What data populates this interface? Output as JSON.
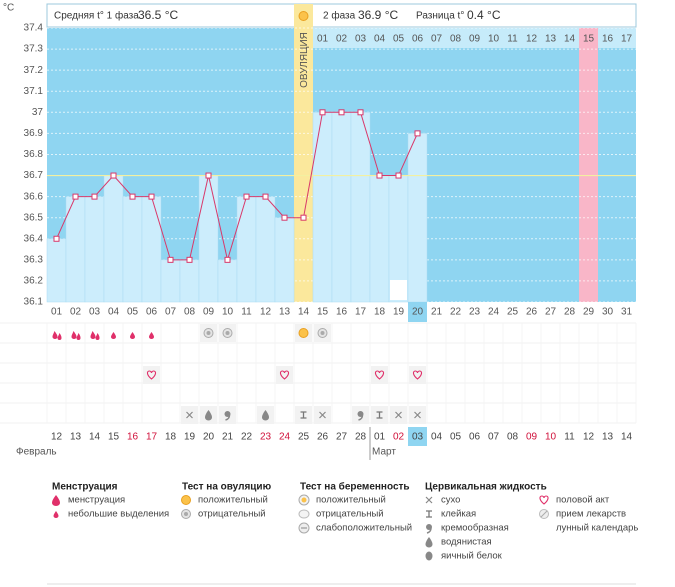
{
  "header": {
    "phase1_label": "Средняя t° 1 фаза",
    "phase1_value": "36.5 °C",
    "phase2_label": "2 фаза",
    "phase2_value": "36.9 °C",
    "diff_label": "Разница t°",
    "diff_value": "0.4 °C"
  },
  "chart_data": {
    "type": "line",
    "y_unit": "°C",
    "categories": [
      "01",
      "02",
      "03",
      "04",
      "05",
      "06",
      "07",
      "08",
      "09",
      "10",
      "11",
      "12",
      "13",
      "14",
      "15",
      "16",
      "17",
      "18",
      "19",
      "20",
      "21",
      "22",
      "23",
      "24",
      "25",
      "26",
      "27",
      "28",
      "29",
      "30",
      "31"
    ],
    "series": [
      {
        "color": "#d9386a",
        "values": [
          36.4,
          36.6,
          36.6,
          36.7,
          36.6,
          36.6,
          36.3,
          36.3,
          36.7,
          36.3,
          36.6,
          36.6,
          36.5,
          36.5,
          37.0,
          37.0,
          37.0,
          36.7,
          36.7,
          36.9,
          null,
          null,
          null,
          null,
          null,
          null,
          null,
          null,
          null,
          null,
          null
        ]
      }
    ],
    "ylim": [
      36.1,
      37.4
    ],
    "yticks": [
      36.1,
      36.2,
      36.3,
      36.4,
      36.5,
      36.6,
      36.7,
      36.8,
      36.9,
      37,
      37.1,
      37.2,
      37.3,
      37.4
    ],
    "grid": true,
    "coverline": 36.7,
    "ovulation_label": "ОВУЛЯЦИЯ",
    "ovulation_day": "14",
    "today": "20",
    "phase2_days": [
      "01",
      "02",
      "03",
      "04",
      "05",
      "06",
      "07",
      "08",
      "09",
      "10",
      "11",
      "12",
      "13",
      "14",
      "15",
      "16",
      "17"
    ],
    "phase2_highlight": "15",
    "dates": [
      "12",
      "13",
      "14",
      "15",
      "16",
      "17",
      "18",
      "19",
      "20",
      "21",
      "22",
      "23",
      "24",
      "25",
      "26",
      "27",
      "28",
      "01",
      "02",
      "03",
      "04",
      "05",
      "06",
      "07",
      "08",
      "09",
      "10",
      "11",
      "12",
      "13",
      "14"
    ],
    "weekend": [
      4,
      5,
      11,
      12,
      18,
      25,
      26
    ],
    "months": [
      {
        "label": "Февраль",
        "start": 0
      },
      {
        "label": "Март",
        "start": 17
      }
    ]
  },
  "legend": [
    {
      "title": "Менструация",
      "items": [
        "менструация",
        "небольшие выделения"
      ]
    },
    {
      "title": "Тест на овуляцию",
      "items": [
        "положительный",
        "отрицательный"
      ]
    },
    {
      "title": "Тест на беременность",
      "items": [
        "положительный",
        "отрицательный",
        "слабоположительный"
      ]
    },
    {
      "title": "Цервикальная жидкость",
      "items": [
        "сухо",
        "клейкая",
        "кремообразная",
        "водянистая",
        "яичный белок"
      ]
    },
    {
      "items": [
        "половой акт",
        "прием лекарств",
        "лунный календарь"
      ]
    }
  ]
}
